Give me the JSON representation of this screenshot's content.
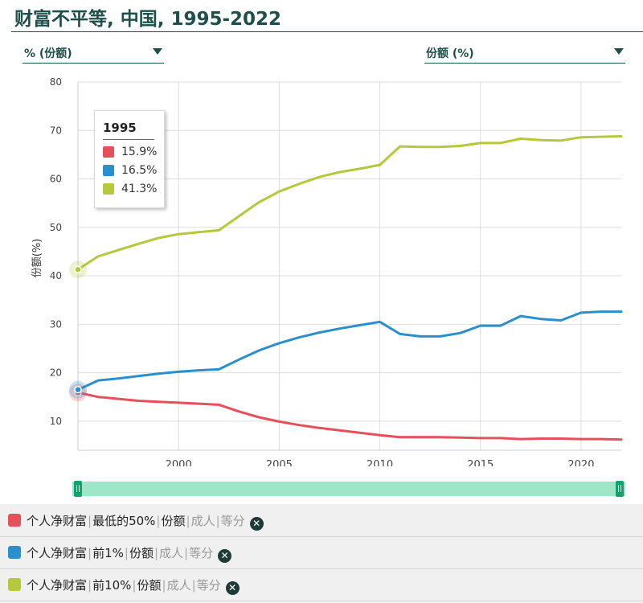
{
  "title": "财富不平等, 中国, 1995-2022",
  "selectors": {
    "unit": "% (份额)",
    "indicator": "份额 (%)"
  },
  "tooltip": {
    "year": "1995",
    "rows": [
      {
        "value": "15.9%",
        "color": "#e5505a"
      },
      {
        "value": "16.5%",
        "color": "#2a8fcd"
      },
      {
        "value": "41.3%",
        "color": "#b5c93a"
      }
    ]
  },
  "chart_data": {
    "type": "line",
    "ylabel": "份额(%)",
    "xlabel": "",
    "xlim": [
      1995,
      2022
    ],
    "ylim": [
      4,
      80
    ],
    "yticks": [
      10,
      20,
      30,
      40,
      50,
      60,
      70,
      80
    ],
    "xticks": [
      2000,
      2005,
      2010,
      2015,
      2020
    ],
    "grid": true,
    "x": [
      1995,
      1996,
      1997,
      1998,
      1999,
      2000,
      2001,
      2002,
      2003,
      2004,
      2005,
      2006,
      2007,
      2008,
      2009,
      2010,
      2011,
      2012,
      2013,
      2014,
      2015,
      2016,
      2017,
      2018,
      2019,
      2020,
      2021,
      2022
    ],
    "series": [
      {
        "name": "个人净财富 | 最低的50% | 份额 | 成人 | 等分",
        "color": "#e5505a",
        "values": [
          15.9,
          15.0,
          14.6,
          14.2,
          14.0,
          13.8,
          13.6,
          13.4,
          12.0,
          10.8,
          9.9,
          9.2,
          8.6,
          8.1,
          7.6,
          7.1,
          6.7,
          6.7,
          6.7,
          6.6,
          6.5,
          6.5,
          6.3,
          6.4,
          6.4,
          6.3,
          6.3,
          6.2
        ]
      },
      {
        "name": "个人净财富 | 前1% | 份额 | 成人 | 等分",
        "color": "#2a8fcd",
        "values": [
          16.5,
          18.4,
          18.8,
          19.3,
          19.8,
          20.2,
          20.5,
          20.7,
          22.7,
          24.6,
          26.1,
          27.3,
          28.3,
          29.1,
          29.8,
          30.5,
          28.0,
          27.5,
          27.5,
          28.2,
          29.7,
          29.7,
          31.7,
          31.1,
          30.8,
          32.4,
          32.6,
          32.6
        ]
      },
      {
        "name": "个人净财富 | 前10% | 份额 | 成人 | 等分",
        "color": "#b5c93a",
        "values": [
          41.3,
          44.0,
          45.3,
          46.6,
          47.8,
          48.6,
          49.0,
          49.4,
          52.3,
          55.2,
          57.4,
          59.0,
          60.4,
          61.4,
          62.1,
          62.9,
          66.7,
          66.6,
          66.6,
          66.8,
          67.4,
          67.4,
          68.3,
          68.0,
          67.9,
          68.6,
          68.7,
          68.8
        ]
      }
    ],
    "highlight_year": 1995
  },
  "legend": [
    {
      "color": "#e5505a",
      "parts": [
        "个人净财富",
        "最低的50%",
        "份额",
        "成人",
        "等分"
      ]
    },
    {
      "color": "#2a8fcd",
      "parts": [
        "个人净财富",
        "前1%",
        "份额",
        "成人",
        "等分"
      ]
    },
    {
      "color": "#b5c93a",
      "parts": [
        "个人净财富",
        "前10%",
        "份额",
        "成人",
        "等分"
      ]
    }
  ],
  "remove_icon": "close-icon"
}
